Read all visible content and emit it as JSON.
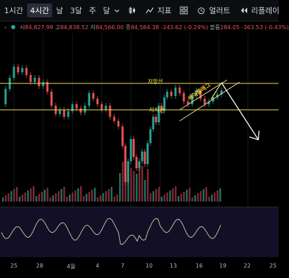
{
  "toolbar": {
    "timeframes": [
      "1시간",
      "4시간",
      "날",
      "3달",
      "주",
      "달"
    ],
    "active_timeframe": "4시간",
    "indicators_label": "지표",
    "alert_label": "얼러트",
    "replay_label": "리플레이"
  },
  "ohlc": {
    "open_label": "시",
    "open": "84,827.99",
    "high_label": "고",
    "high": "84,838.52",
    "low_label": "저",
    "low": "84,566.00",
    "close_label": "종",
    "close": "84,584.38",
    "change": "-243.62 (-0.29%)",
    "volume_label": "볼륨",
    "volume": "284.05",
    "vol_change": "-363.53 (-0.43%)"
  },
  "annotations": {
    "resistance_label": "저항선",
    "support_label": "지지선",
    "pattern_label": "베어플래그"
  },
  "colors": {
    "up": "#26a69a",
    "down": "#ef5350",
    "line": "#f5e34a",
    "arrow": "#ffffff"
  },
  "x_axis": [
    {
      "label": "25"
    },
    {
      "label": "28"
    },
    {
      "label": "4월"
    },
    {
      "label": "4"
    },
    {
      "label": "7"
    },
    {
      "label": "10"
    },
    {
      "label": "13"
    },
    {
      "label": "16"
    },
    {
      "label": "19"
    },
    {
      "label": "22"
    },
    {
      "label": "25"
    }
  ]
}
